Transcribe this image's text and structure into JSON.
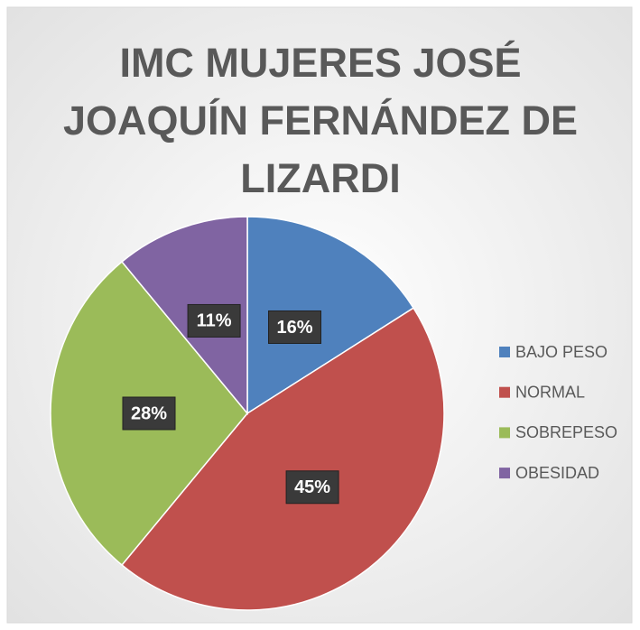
{
  "chart_data": {
    "type": "pie",
    "title": "IMC MUJERES JOSÉ JOAQUÍN FERNÁNDEZ DE LIZARDI",
    "categories": [
      "BAJO PESO",
      "NORMAL",
      "SOBREPESO",
      "OBESIDAD"
    ],
    "values": [
      16,
      45,
      28,
      11
    ],
    "value_labels": [
      "16%",
      "45%",
      "28%",
      "11%"
    ],
    "colors": [
      "#4f81bd",
      "#c0504d",
      "#9bbb59",
      "#8064a2"
    ],
    "legend": "right"
  }
}
